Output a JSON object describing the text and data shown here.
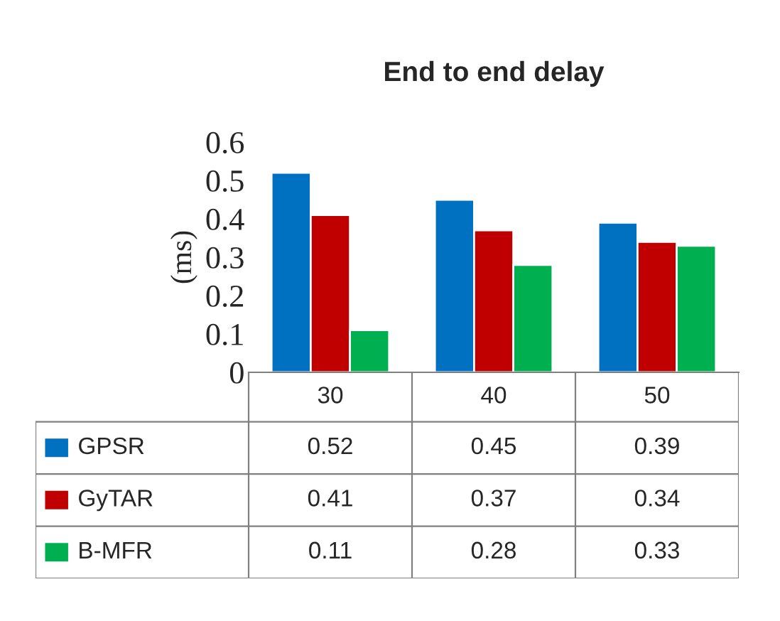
{
  "chart_data": {
    "type": "bar",
    "title": "End to end delay",
    "ylabel": "(ms)",
    "categories": [
      "30",
      "40",
      "50"
    ],
    "series": [
      {
        "name": "GPSR",
        "color": "#0070c0",
        "values": [
          0.52,
          0.45,
          0.39
        ]
      },
      {
        "name": "GyTAR",
        "color": "#c00000",
        "values": [
          0.41,
          0.37,
          0.34
        ]
      },
      {
        "name": "B-MFR",
        "color": "#00b050",
        "values": [
          0.11,
          0.28,
          0.33
        ]
      }
    ],
    "ylim": [
      0,
      0.6
    ],
    "yticks": [
      0,
      0.1,
      0.2,
      0.3,
      0.4,
      0.5,
      0.6
    ],
    "grid": false,
    "legend": "bottom",
    "data_labels": true
  }
}
